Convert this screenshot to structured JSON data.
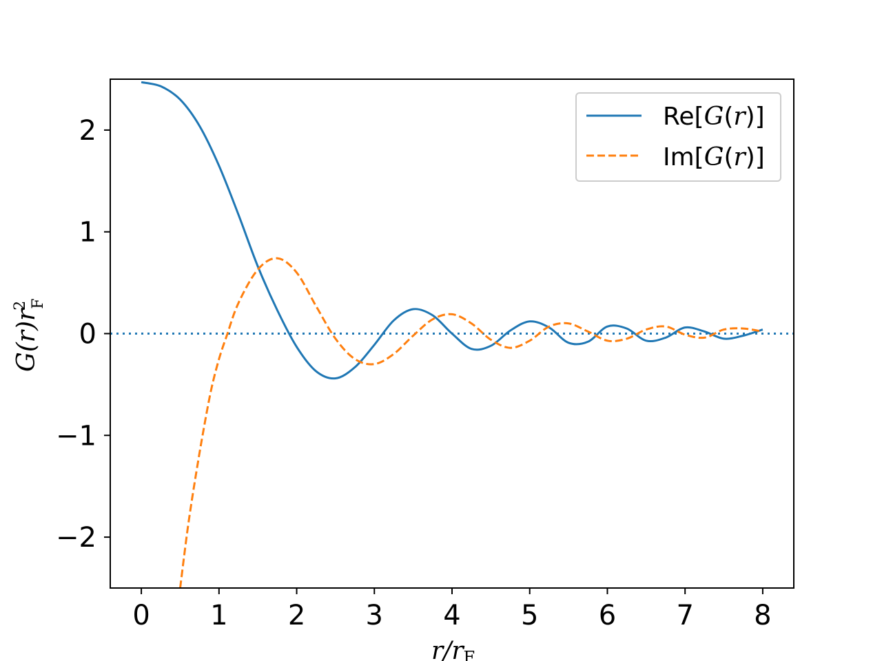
{
  "chart_data": {
    "type": "line",
    "xlabel": {
      "main": "r/r",
      "sub": "F"
    },
    "ylabel": {
      "main": "G(r)r",
      "sup": "2",
      "sub": "F"
    },
    "xlim": [
      -0.4,
      8.4
    ],
    "ylim": [
      -2.5,
      2.5
    ],
    "xticks": [
      0,
      1,
      2,
      3,
      4,
      5,
      6,
      7,
      8
    ],
    "yticks": [
      -2,
      -1,
      0,
      1,
      2
    ],
    "xtick_labels": [
      "0",
      "1",
      "2",
      "3",
      "4",
      "5",
      "6",
      "7",
      "8"
    ],
    "ytick_labels": [
      "−2",
      "−1",
      "0",
      "1",
      "2"
    ],
    "grid": false,
    "legend_position": "top-right",
    "reference_line": {
      "y": 0,
      "style": "dotted",
      "color": "#1f77b4"
    },
    "series": [
      {
        "name": "Re[G(r)]",
        "legend_parts": [
          "Re[",
          "G",
          "(",
          "r",
          ")]"
        ],
        "color": "#1f77b4",
        "style": "solid",
        "x": [
          0,
          0.25,
          0.5,
          0.75,
          1.0,
          1.25,
          1.5,
          1.75,
          2.0,
          2.25,
          2.5,
          2.75,
          3.0,
          3.25,
          3.5,
          3.75,
          4.0,
          4.25,
          4.5,
          4.75,
          5.0,
          5.25,
          5.5,
          5.75,
          6.0,
          6.25,
          6.5,
          6.75,
          7.0,
          7.25,
          7.5,
          7.75,
          8.0
        ],
        "y": [
          2.47,
          2.43,
          2.3,
          2.04,
          1.65,
          1.17,
          0.66,
          0.23,
          -0.13,
          -0.37,
          -0.44,
          -0.33,
          -0.11,
          0.13,
          0.24,
          0.18,
          0.0,
          -0.15,
          -0.12,
          0.03,
          0.12,
          0.06,
          -0.09,
          -0.08,
          0.07,
          0.05,
          -0.07,
          -0.04,
          0.06,
          0.02,
          -0.05,
          -0.02,
          0.04
        ]
      },
      {
        "name": "Im[G(r)]",
        "legend_parts": [
          "Im[",
          "G",
          "(",
          "r",
          ")]"
        ],
        "color": "#ff7f0e",
        "style": "dashed",
        "x": [
          0.5,
          0.6,
          0.7,
          0.8,
          0.9,
          1.0,
          1.1,
          1.25,
          1.5,
          1.75,
          2.0,
          2.25,
          2.5,
          2.75,
          3.0,
          3.25,
          3.5,
          3.75,
          4.0,
          4.25,
          4.5,
          4.75,
          5.0,
          5.25,
          5.5,
          5.75,
          6.0,
          6.25,
          6.5,
          6.75,
          7.0,
          7.25,
          7.5,
          7.75,
          8.0
        ],
        "y": [
          -2.5,
          -1.9,
          -1.4,
          -0.95,
          -0.55,
          -0.25,
          -0.02,
          0.3,
          0.63,
          0.74,
          0.6,
          0.27,
          -0.05,
          -0.25,
          -0.3,
          -0.2,
          -0.02,
          0.14,
          0.19,
          0.1,
          -0.06,
          -0.14,
          -0.07,
          0.07,
          0.1,
          0.02,
          -0.07,
          -0.05,
          0.04,
          0.07,
          -0.01,
          -0.04,
          0.04,
          0.05,
          0.02
        ]
      }
    ]
  }
}
